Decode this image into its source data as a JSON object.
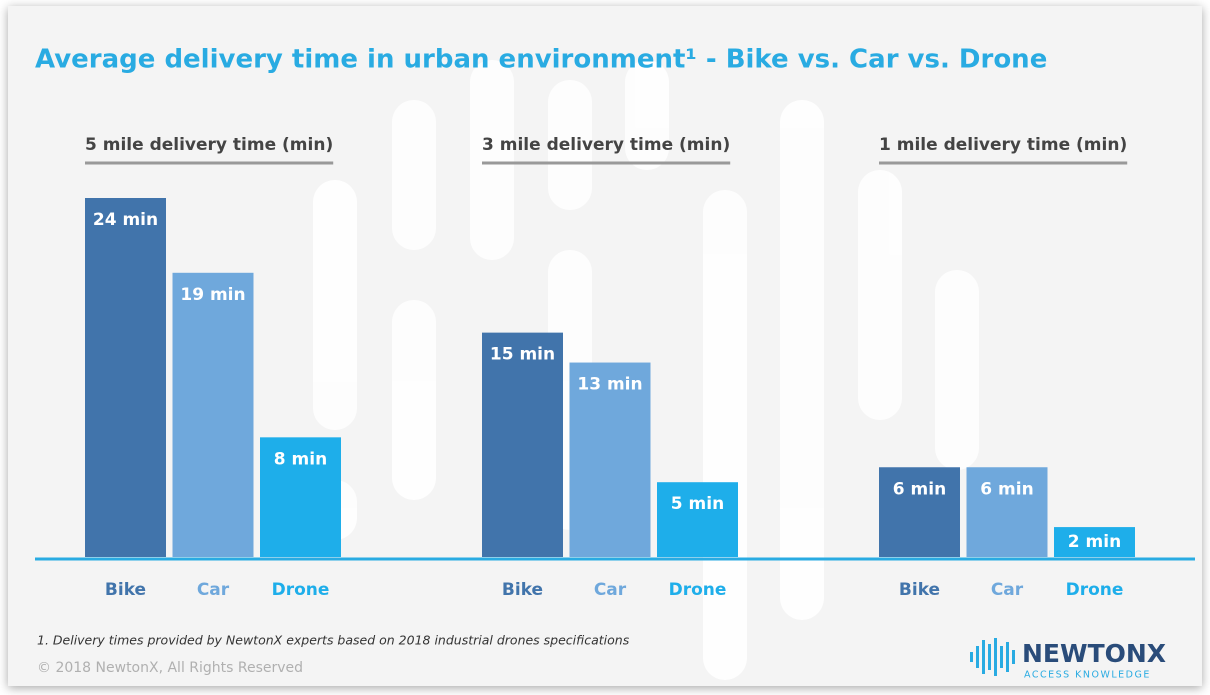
{
  "title": "Average delivery time in urban environment¹ - Bike vs. Car vs. Drone",
  "footnote": "1. Delivery times provided by NewtonX experts based on 2018 industrial drones specifications",
  "copyright": "© 2018 NewtonX, All Rights Reserved",
  "logo": {
    "name": "NEWTONX",
    "tagline": "ACCESS KNOWLEDGE"
  },
  "chart_data": [
    {
      "type": "bar",
      "subtitle": "5 mile delivery time (min)",
      "categories": [
        "Bike",
        "Car",
        "Drone"
      ],
      "values": [
        24,
        19,
        8
      ],
      "value_labels": [
        "24 min",
        "19 min",
        "8 min"
      ],
      "colors": [
        "#4174ab",
        "#6fa8dc",
        "#1eaeea"
      ]
    },
    {
      "type": "bar",
      "subtitle": "3 mile delivery time (min)",
      "categories": [
        "Bike",
        "Car",
        "Drone"
      ],
      "values": [
        15,
        13,
        5
      ],
      "value_labels": [
        "15 min",
        "13 min",
        "5 min"
      ],
      "colors": [
        "#4174ab",
        "#6fa8dc",
        "#1eaeea"
      ]
    },
    {
      "type": "bar",
      "subtitle": "1 mile delivery time (min)",
      "categories": [
        "Bike",
        "Car",
        "Drone"
      ],
      "values": [
        6,
        6,
        2
      ],
      "value_labels": [
        "6 min",
        "6 min",
        "2 min"
      ],
      "colors": [
        "#4174ab",
        "#6fa8dc",
        "#1eaeea"
      ]
    }
  ]
}
